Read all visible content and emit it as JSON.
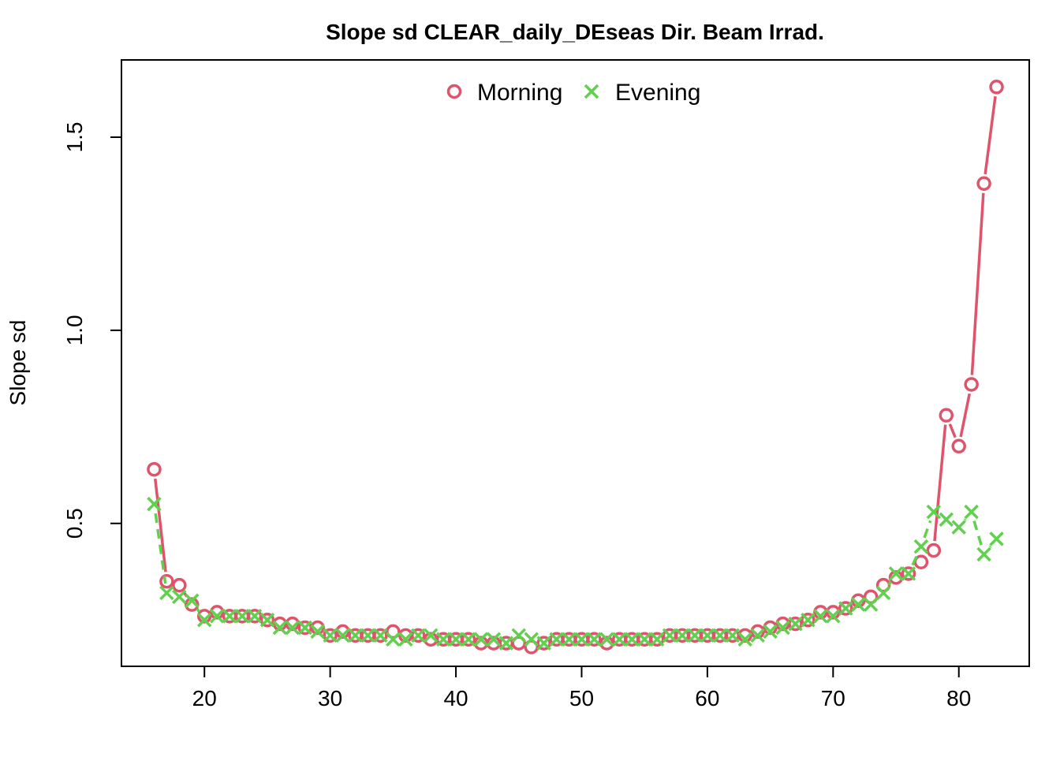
{
  "chart_data": {
    "type": "line",
    "title": "Slope sd CLEAR_daily_DEseas Dir. Beam Irrad.",
    "xlabel": "",
    "ylabel": "Slope sd",
    "xlim": [
      13.4,
      85.6
    ],
    "ylim": [
      0.13,
      1.7
    ],
    "x_ticks": [
      20,
      30,
      40,
      50,
      60,
      70,
      80
    ],
    "y_ticks": [
      0.5,
      1.0,
      1.5
    ],
    "x_tick_labels": [
      "20",
      "30",
      "40",
      "50",
      "60",
      "70",
      "80"
    ],
    "y_tick_labels": [
      "0.5",
      "1.0",
      "1.5"
    ],
    "grid": false,
    "legend_position": "top",
    "x": [
      16,
      17,
      18,
      19,
      20,
      21,
      22,
      23,
      24,
      25,
      26,
      27,
      28,
      29,
      30,
      31,
      32,
      33,
      34,
      35,
      36,
      37,
      38,
      39,
      40,
      41,
      42,
      43,
      44,
      45,
      46,
      47,
      48,
      49,
      50,
      51,
      52,
      53,
      54,
      55,
      56,
      57,
      58,
      59,
      60,
      61,
      62,
      63,
      64,
      65,
      66,
      67,
      68,
      69,
      70,
      71,
      72,
      73,
      74,
      75,
      76,
      77,
      78,
      79,
      80,
      81,
      82,
      83
    ],
    "series": [
      {
        "name": "Morning",
        "color": "#DF536B",
        "marker": "circle",
        "line_style": "solid",
        "values": [
          0.64,
          0.35,
          0.34,
          0.29,
          0.26,
          0.27,
          0.26,
          0.26,
          0.26,
          0.25,
          0.24,
          0.24,
          0.23,
          0.23,
          0.21,
          0.22,
          0.21,
          0.21,
          0.21,
          0.22,
          0.21,
          0.21,
          0.2,
          0.2,
          0.2,
          0.2,
          0.19,
          0.19,
          0.19,
          0.19,
          0.18,
          0.19,
          0.2,
          0.2,
          0.2,
          0.2,
          0.19,
          0.2,
          0.2,
          0.2,
          0.2,
          0.21,
          0.21,
          0.21,
          0.21,
          0.21,
          0.21,
          0.21,
          0.22,
          0.23,
          0.24,
          0.24,
          0.25,
          0.27,
          0.27,
          0.28,
          0.3,
          0.31,
          0.34,
          0.36,
          0.37,
          0.4,
          0.43,
          0.78,
          0.7,
          0.86,
          1.38,
          1.63
        ]
      },
      {
        "name": "Evening",
        "color": "#61D04F",
        "marker": "cross",
        "line_style": "dashed",
        "values": [
          0.55,
          0.32,
          0.31,
          0.3,
          0.25,
          0.26,
          0.26,
          0.26,
          0.26,
          0.25,
          0.23,
          0.23,
          0.23,
          0.22,
          0.21,
          0.21,
          0.21,
          0.21,
          0.21,
          0.2,
          0.2,
          0.21,
          0.21,
          0.2,
          0.2,
          0.2,
          0.2,
          0.2,
          0.19,
          0.21,
          0.2,
          0.19,
          0.2,
          0.2,
          0.2,
          0.2,
          0.2,
          0.2,
          0.2,
          0.2,
          0.2,
          0.21,
          0.21,
          0.21,
          0.21,
          0.21,
          0.21,
          0.2,
          0.21,
          0.22,
          0.23,
          0.24,
          0.25,
          0.26,
          0.26,
          0.28,
          0.29,
          0.29,
          0.32,
          0.37,
          0.37,
          0.44,
          0.53,
          0.51,
          0.49,
          0.53,
          0.42,
          0.46
        ]
      }
    ]
  }
}
